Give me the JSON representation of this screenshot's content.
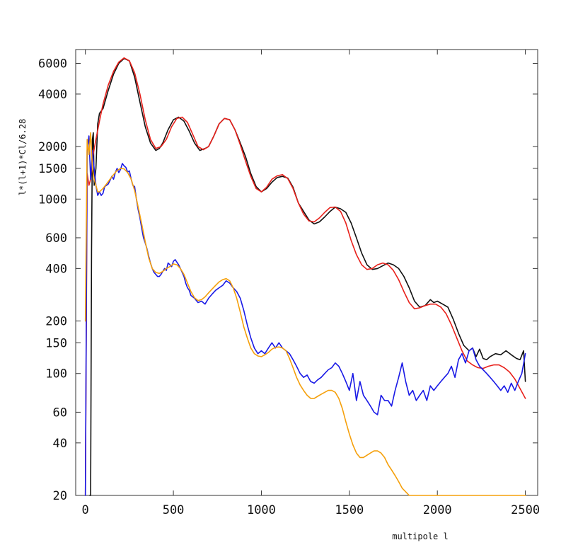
{
  "chart_data": {
    "type": "line",
    "xlabel": "multipole l",
    "ylabel": "l*(l+1)*Cl/6.28",
    "xlim": [
      -55,
      2570
    ],
    "ylim": [
      20,
      7200
    ],
    "yscale": "log",
    "grid": false,
    "x_ticks": [
      0,
      500,
      1000,
      1500,
      2000,
      2500
    ],
    "x_tick_labels": [
      "0",
      "500",
      "1000",
      "1500",
      "2000",
      "2500"
    ],
    "y_ticks": [
      20,
      40,
      60,
      100,
      150,
      200,
      400,
      600,
      1000,
      1500,
      2000,
      4000,
      6000
    ],
    "y_tick_labels": [
      "20",
      "40",
      "60",
      "100",
      "150",
      "200",
      "400",
      "600",
      "1000",
      "1500",
      "2000",
      "4000",
      "6000"
    ],
    "series": [
      {
        "color": "#111111",
        "x": [
          25,
          30,
          35,
          40,
          45,
          50,
          60,
          70,
          80,
          100,
          130,
          160,
          190,
          220,
          250,
          280,
          310,
          340,
          370,
          400,
          420,
          440,
          470,
          500,
          530,
          560,
          590,
          620,
          650,
          680,
          700,
          730,
          760,
          790,
          820,
          850,
          880,
          910,
          940,
          970,
          1000,
          1030,
          1060,
          1090,
          1120,
          1150,
          1180,
          1210,
          1240,
          1270,
          1300,
          1330,
          1360,
          1390,
          1420,
          1450,
          1480,
          1510,
          1540,
          1570,
          1600,
          1630,
          1660,
          1690,
          1720,
          1750,
          1780,
          1810,
          1840,
          1870,
          1900,
          1930,
          1960,
          1980,
          2000,
          2030,
          2060,
          2090,
          2120,
          2150,
          2180,
          2200,
          2220,
          2240,
          2260,
          2280,
          2300,
          2330,
          2360,
          2390,
          2420,
          2450,
          2470,
          2490,
          2500
        ],
        "y": [
          20,
          20,
          500,
          2200,
          2400,
          1200,
          1500,
          2700,
          3100,
          3300,
          4200,
          5200,
          6000,
          6400,
          6200,
          5000,
          3600,
          2600,
          2100,
          1900,
          1950,
          2100,
          2500,
          2850,
          2950,
          2800,
          2450,
          2100,
          1900,
          1950,
          2000,
          2300,
          2700,
          2900,
          2850,
          2500,
          2100,
          1750,
          1400,
          1180,
          1100,
          1150,
          1250,
          1330,
          1350,
          1320,
          1170,
          950,
          850,
          760,
          720,
          740,
          790,
          850,
          900,
          880,
          840,
          730,
          600,
          490,
          420,
          395,
          400,
          415,
          430,
          420,
          400,
          360,
          310,
          260,
          240,
          245,
          265,
          255,
          260,
          250,
          240,
          205,
          170,
          145,
          135,
          140,
          125,
          138,
          122,
          120,
          125,
          130,
          128,
          135,
          128,
          122,
          120,
          135,
          90
        ]
      },
      {
        "color": "#e8211b",
        "x": [
          0,
          10,
          20,
          30,
          40,
          60,
          80,
          100,
          130,
          160,
          190,
          220,
          250,
          280,
          310,
          340,
          370,
          400,
          430,
          460,
          490,
          520,
          550,
          580,
          610,
          640,
          670,
          700,
          730,
          760,
          790,
          820,
          850,
          880,
          910,
          940,
          970,
          1000,
          1030,
          1060,
          1090,
          1120,
          1150,
          1180,
          1210,
          1240,
          1270,
          1300,
          1330,
          1360,
          1390,
          1420,
          1450,
          1480,
          1510,
          1540,
          1570,
          1600,
          1630,
          1660,
          1690,
          1720,
          1750,
          1780,
          1810,
          1840,
          1870,
          1900,
          1930,
          1960,
          1990,
          2020,
          2050,
          2080,
          2110,
          2140,
          2170,
          2200,
          2230,
          2260,
          2290,
          2320,
          2350,
          2380,
          2410,
          2440,
          2470,
          2500
        ],
        "y": [
          20,
          1400,
          1200,
          1300,
          1700,
          2200,
          2800,
          3500,
          4500,
          5400,
          6100,
          6450,
          6200,
          5300,
          4000,
          2850,
          2200,
          1950,
          2000,
          2200,
          2600,
          2900,
          2950,
          2750,
          2350,
          2000,
          1920,
          2000,
          2300,
          2700,
          2900,
          2850,
          2500,
          2050,
          1650,
          1350,
          1150,
          1100,
          1170,
          1300,
          1360,
          1380,
          1310,
          1150,
          950,
          820,
          750,
          740,
          780,
          840,
          895,
          900,
          850,
          730,
          580,
          480,
          420,
          395,
          400,
          420,
          430,
          420,
          390,
          345,
          295,
          255,
          235,
          238,
          245,
          250,
          250,
          240,
          220,
          190,
          160,
          135,
          118,
          112,
          108,
          107,
          110,
          112,
          112,
          108,
          102,
          93,
          82,
          72
        ]
      },
      {
        "color": "#1a1ae6",
        "x": [
          0,
          10,
          20,
          30,
          40,
          50,
          60,
          70,
          80,
          90,
          100,
          110,
          120,
          130,
          140,
          150,
          160,
          170,
          180,
          190,
          200,
          210,
          220,
          230,
          240,
          250,
          260,
          270,
          280,
          290,
          300,
          310,
          320,
          330,
          340,
          350,
          360,
          370,
          380,
          390,
          400,
          410,
          420,
          430,
          440,
          450,
          460,
          470,
          480,
          490,
          500,
          510,
          520,
          530,
          540,
          550,
          560,
          570,
          580,
          590,
          600,
          620,
          640,
          660,
          680,
          700,
          720,
          740,
          760,
          780,
          800,
          820,
          840,
          860,
          880,
          900,
          920,
          940,
          960,
          980,
          1000,
          1020,
          1040,
          1060,
          1080,
          1100,
          1120,
          1140,
          1160,
          1180,
          1200,
          1220,
          1240,
          1260,
          1280,
          1300,
          1320,
          1340,
          1360,
          1380,
          1400,
          1420,
          1440,
          1460,
          1480,
          1500,
          1520,
          1540,
          1560,
          1580,
          1600,
          1620,
          1640,
          1660,
          1680,
          1700,
          1720,
          1740,
          1760,
          1780,
          1800,
          1820,
          1840,
          1860,
          1880,
          1900,
          1920,
          1940,
          1960,
          1980,
          2000,
          2020,
          2040,
          2060,
          2080,
          2100,
          2120,
          2140,
          2160,
          2180,
          2200,
          2220,
          2240,
          2260,
          2280,
          2300,
          2320,
          2340,
          2360,
          2380,
          2400,
          2420,
          2440,
          2460,
          2480,
          2500
        ],
        "y": [
          20,
          1900,
          2300,
          1300,
          1900,
          1500,
          1200,
          1050,
          1100,
          1050,
          1080,
          1180,
          1200,
          1220,
          1280,
          1350,
          1300,
          1420,
          1500,
          1420,
          1480,
          1600,
          1550,
          1520,
          1430,
          1450,
          1300,
          1200,
          1180,
          1000,
          870,
          780,
          680,
          600,
          560,
          520,
          470,
          430,
          400,
          380,
          370,
          360,
          360,
          370,
          385,
          400,
          390,
          430,
          420,
          410,
          440,
          450,
          435,
          420,
          400,
          380,
          360,
          330,
          310,
          300,
          280,
          270,
          255,
          260,
          250,
          270,
          285,
          300,
          310,
          320,
          340,
          330,
          310,
          295,
          270,
          230,
          190,
          160,
          140,
          130,
          135,
          130,
          140,
          150,
          140,
          150,
          140,
          135,
          130,
          120,
          110,
          100,
          95,
          98,
          90,
          88,
          92,
          95,
          100,
          105,
          108,
          115,
          110,
          100,
          90,
          80,
          100,
          70,
          90,
          75,
          70,
          65,
          60,
          58,
          75,
          70,
          70,
          65,
          80,
          95,
          115,
          90,
          75,
          80,
          70,
          75,
          80,
          70,
          85,
          80,
          85,
          90,
          95,
          100,
          110,
          95,
          120,
          130,
          115,
          135,
          140,
          120,
          110,
          105,
          100,
          95,
          90,
          85,
          80,
          85,
          78,
          88,
          80,
          90,
          100,
          130
        ]
      },
      {
        "color": "#f5a00c",
        "x": [
          0,
          10,
          20,
          30,
          40,
          50,
          60,
          70,
          80,
          100,
          120,
          140,
          160,
          180,
          200,
          220,
          240,
          260,
          280,
          300,
          320,
          340,
          360,
          380,
          400,
          420,
          440,
          460,
          480,
          500,
          520,
          540,
          560,
          580,
          600,
          620,
          640,
          660,
          680,
          700,
          720,
          740,
          760,
          780,
          800,
          820,
          840,
          860,
          880,
          900,
          920,
          940,
          960,
          980,
          1000,
          1020,
          1040,
          1060,
          1080,
          1100,
          1120,
          1140,
          1160,
          1180,
          1200,
          1220,
          1240,
          1260,
          1280,
          1300,
          1320,
          1340,
          1360,
          1380,
          1400,
          1420,
          1440,
          1460,
          1480,
          1500,
          1520,
          1540,
          1560,
          1580,
          1600,
          1620,
          1640,
          1660,
          1680,
          1700,
          1720,
          1740,
          1760,
          1780,
          1800,
          1820,
          1840,
          1860,
          1880,
          1900,
          1920,
          1940,
          1960,
          1980,
          2000,
          2200,
          2400,
          2500
        ],
        "y": [
          200,
          2200,
          1800,
          2400,
          1500,
          1300,
          1200,
          1100,
          1100,
          1150,
          1220,
          1300,
          1380,
          1460,
          1500,
          1490,
          1420,
          1300,
          1120,
          900,
          720,
          570,
          460,
          400,
          380,
          375,
          385,
          400,
          410,
          425,
          420,
          400,
          370,
          330,
          295,
          272,
          262,
          265,
          275,
          290,
          305,
          320,
          335,
          345,
          350,
          340,
          310,
          270,
          225,
          185,
          160,
          140,
          130,
          126,
          125,
          128,
          132,
          138,
          141,
          142,
          140,
          135,
          122,
          108,
          95,
          86,
          80,
          75,
          72,
          72,
          74,
          76,
          78,
          80,
          80,
          78,
          72,
          63,
          53,
          45,
          39,
          35,
          33,
          33,
          34,
          35,
          36,
          36,
          35,
          33,
          30,
          28,
          26,
          24,
          22,
          21,
          20,
          20,
          20,
          20,
          20,
          20,
          20,
          20,
          20,
          20,
          20,
          20
        ]
      }
    ]
  }
}
